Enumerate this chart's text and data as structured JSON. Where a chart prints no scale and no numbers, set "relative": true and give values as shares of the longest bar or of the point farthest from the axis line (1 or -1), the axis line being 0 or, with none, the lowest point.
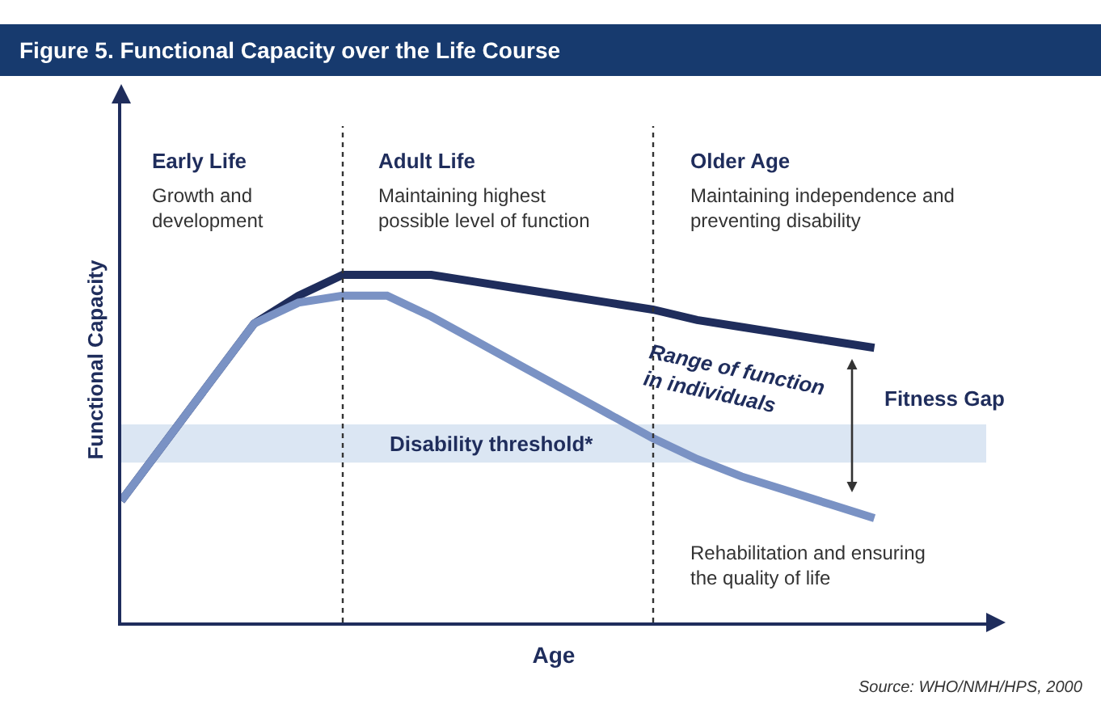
{
  "chart_data": {
    "type": "line",
    "title": "Figure 5. Functional Capacity over the Life Course",
    "xlabel": "Age",
    "ylabel": "Functional Capacity",
    "relative": true,
    "categories": [
      null,
      null,
      null,
      null,
      null,
      null,
      null,
      null,
      null,
      null,
      null,
      null,
      null,
      null,
      null,
      null,
      null,
      null
    ],
    "series": [
      {
        "color": "#1f2d5c",
        "values": [
          0.35,
          0.52,
          0.69,
          0.86,
          0.94,
          1.0,
          1.0,
          1.0,
          0.98,
          0.96,
          0.94,
          0.92,
          0.9,
          0.87,
          0.85,
          0.83,
          0.81,
          0.79
        ]
      },
      {
        "color": "#7a92c4",
        "values": [
          0.35,
          0.52,
          0.69,
          0.86,
          0.92,
          0.94,
          0.94,
          0.88,
          0.81,
          0.74,
          0.67,
          0.6,
          0.53,
          0.47,
          0.42,
          0.38,
          0.34,
          0.3
        ]
      }
    ],
    "bands": [
      {
        "axis": "y",
        "from": 0.46,
        "to": 0.57,
        "label": "Disability threshold*",
        "color": "#dbe6f3"
      }
    ],
    "annotations": [
      "Early Life",
      "Growth and\ndevelopment",
      "Adult Life",
      "Maintaining highest\npossible level of function",
      "Older Age",
      "Maintaining independence and\npreventing disability",
      "Range of function\nin individuals",
      "Fitness Gap",
      "Rehabilitation and ensuring\nthe quality of life",
      "Source: WHO/NMH/HPS, 2000"
    ],
    "grid": false,
    "marker": "none",
    "line_style": "solid"
  }
}
